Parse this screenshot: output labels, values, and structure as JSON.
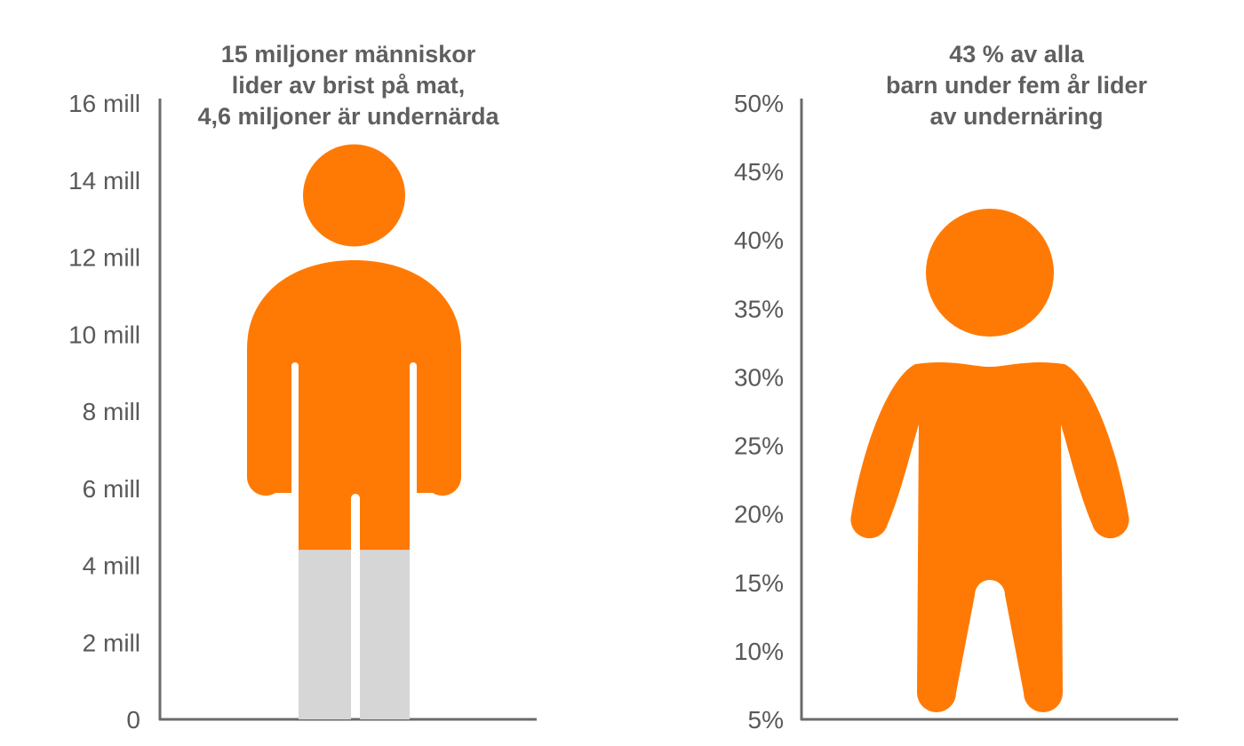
{
  "colors": {
    "filled": "#ff7a05",
    "empty": "#d6d6d6",
    "axis": "#6b6b6b",
    "text": "#5f5f5f"
  },
  "chart_data": [
    {
      "type": "bar",
      "title_lines": [
        "15 miljoner människor",
        "lider av brist på mat,",
        "4,6 miljoner är undernärda"
      ],
      "ylim": [
        0,
        16
      ],
      "yticks": [
        0,
        2,
        4,
        6,
        8,
        10,
        12,
        14,
        16
      ],
      "ytick_labels": [
        "0",
        "2 mill",
        "4 mill",
        "6 mill",
        "8 mill",
        "10 mill",
        "12 mill",
        "14 mill",
        "16 mill"
      ],
      "icon": "adult-person-icon",
      "value": 15,
      "fill_from": 4.4,
      "grid": false
    },
    {
      "type": "bar",
      "title_lines": [
        "43 % av alla",
        "barn under fem år lider",
        "av undernäring"
      ],
      "ylim": [
        5,
        50
      ],
      "yticks": [
        5,
        10,
        15,
        20,
        25,
        30,
        35,
        40,
        45,
        50
      ],
      "ytick_labels": [
        "5%",
        "10%",
        "15%",
        "20%",
        "25%",
        "30%",
        "35%",
        "40%",
        "45%",
        "50%"
      ],
      "icon": "child-person-icon",
      "value": 43,
      "grid": false
    }
  ]
}
